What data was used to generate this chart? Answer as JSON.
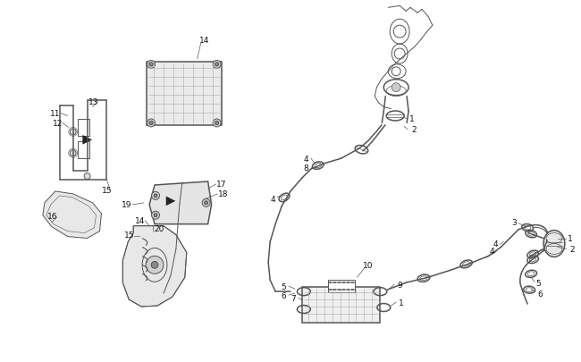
{
  "bg_color": "#ffffff",
  "line_color": "#555555",
  "dark_color": "#222222",
  "label_color": "#111111",
  "fig_width": 6.5,
  "fig_height": 4.06,
  "dpi": 100
}
